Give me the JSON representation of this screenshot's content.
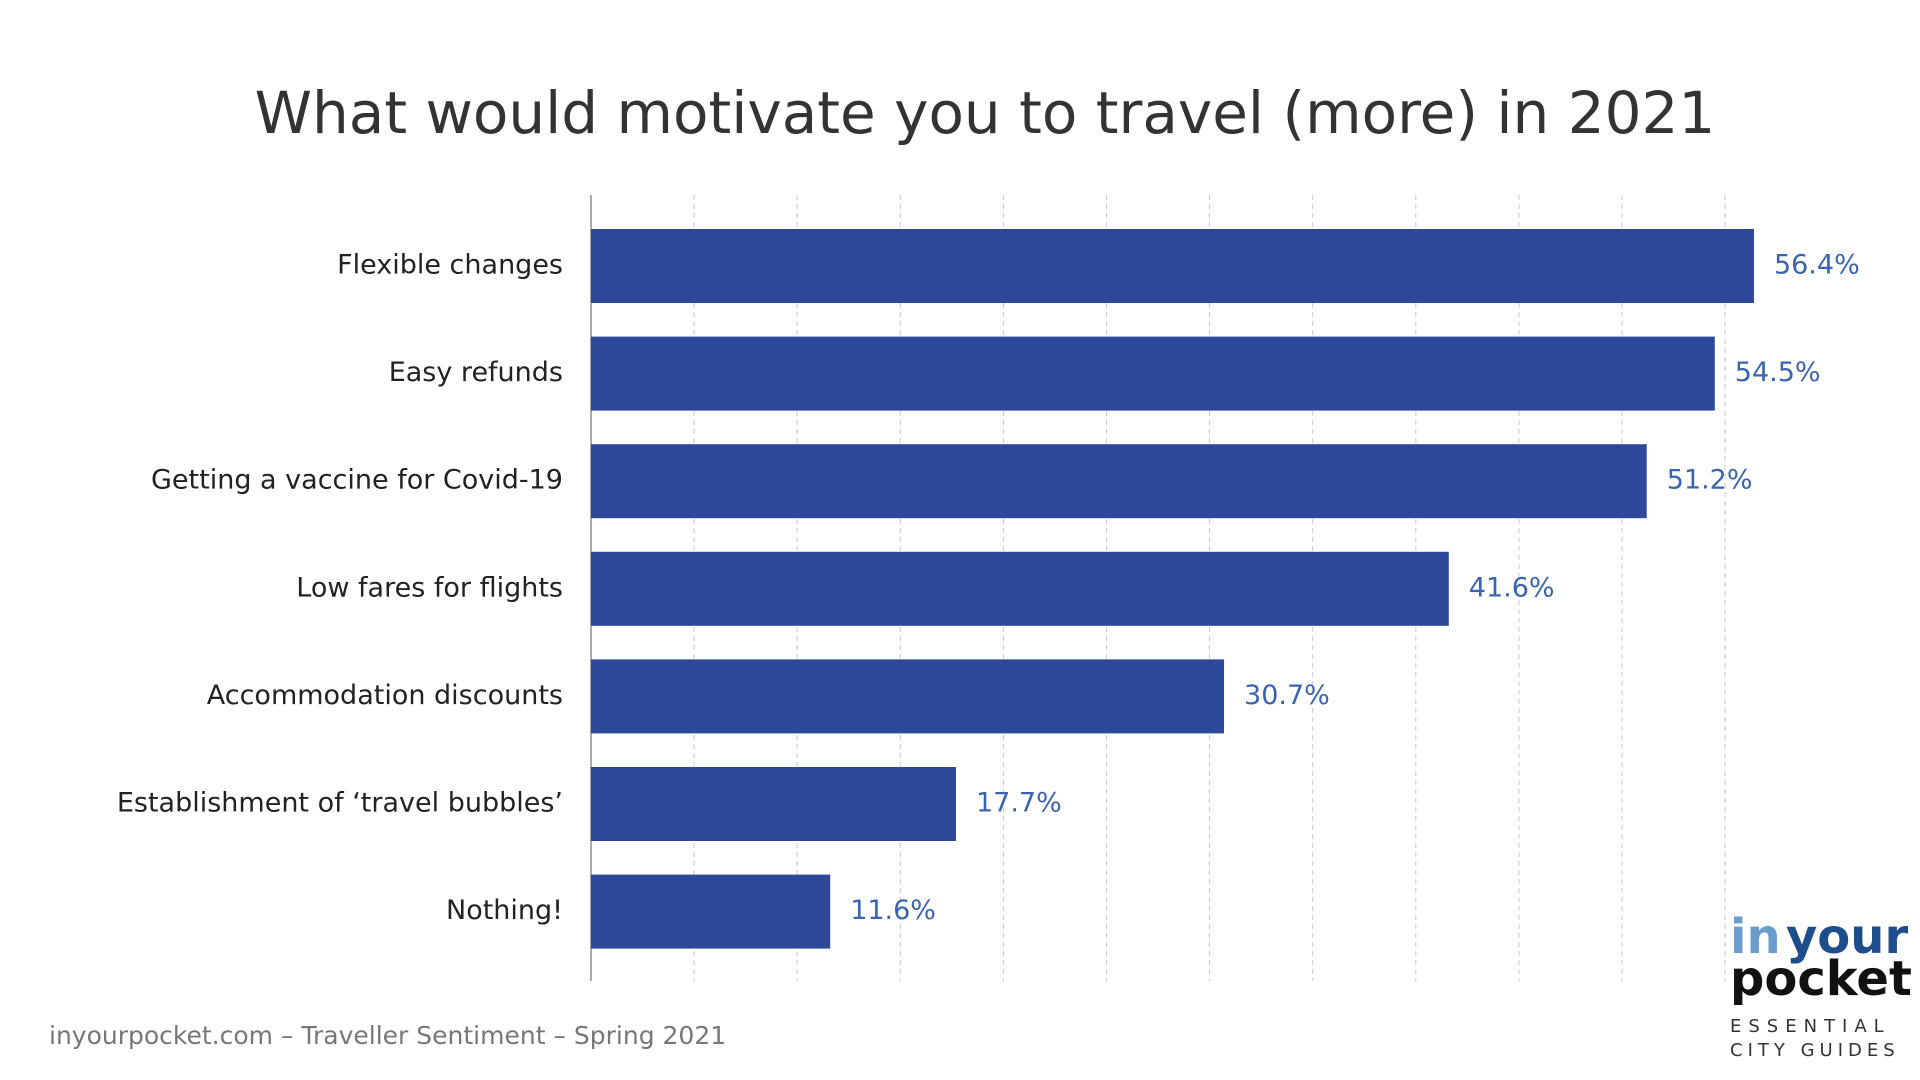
{
  "chart_data": {
    "type": "bar",
    "orientation": "horizontal",
    "title": "What would motivate you to travel (more) in 2021",
    "categories": [
      "Flexible changes",
      "Easy refunds",
      "Getting a vaccine for Covid-19",
      "Low fares for flights",
      "Accommodation discounts",
      "Establishment of ‘travel bubbles’",
      "Nothing!"
    ],
    "values": [
      56.4,
      54.5,
      51.2,
      41.6,
      30.7,
      17.7,
      11.6
    ],
    "value_labels": [
      "56.4%",
      "54.5%",
      "51.2%",
      "41.6%",
      "30.7%",
      "17.7%",
      "11.6%"
    ],
    "color": "#2e4899",
    "label_color": "#3a63b0",
    "xlim": [
      0,
      60
    ],
    "xticks": [
      5,
      10,
      15,
      20,
      25,
      30,
      35,
      40,
      45,
      50,
      55
    ],
    "grid": true
  },
  "footer": "inyourpocket.com – Traveller Sentiment – Spring 2021",
  "logo": {
    "in": "in",
    "your": "your",
    "pocket": "pocket",
    "tagline1": "ESSENTIAL",
    "tagline2": "CITY GUIDES"
  }
}
